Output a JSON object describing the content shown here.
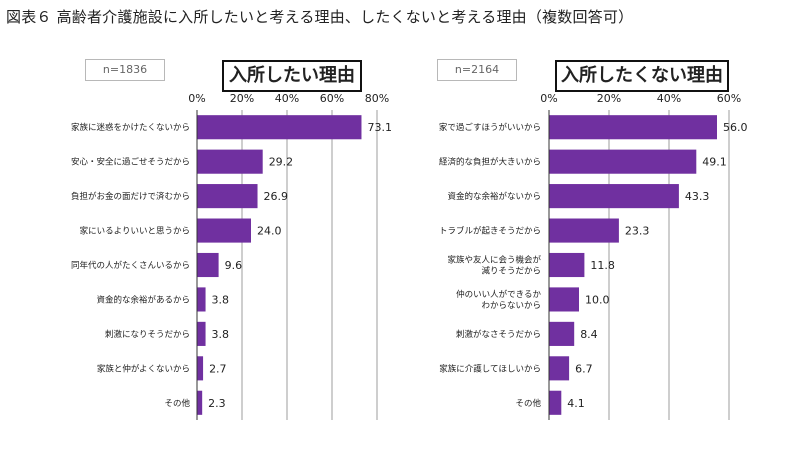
{
  "figure_title": "図表６ 高齢者介護施設に入所したいと考える理由、したくないと考える理由（複数回答可）",
  "colors": {
    "bar": "#7030a0",
    "grid": "#9e9e9e",
    "axis": "#333333"
  },
  "chart_data": [
    {
      "type": "bar",
      "orientation": "horizontal",
      "title": "入所したい理由",
      "n_label": "n=1836",
      "xlim": [
        0,
        80
      ],
      "ticks": [
        "0%",
        "20%",
        "40%",
        "60%",
        "80%"
      ],
      "tick_values": [
        0,
        20,
        40,
        60,
        80
      ],
      "categories": [
        [
          "家族に迷惑をかけたくないから"
        ],
        [
          "安心・安全に過ごせそうだから"
        ],
        [
          "負担がお金の面だけで済むから"
        ],
        [
          "家にいるよりいいと思うから"
        ],
        [
          "同年代の人がたくさんいるから"
        ],
        [
          "資金的な余裕があるから"
        ],
        [
          "刺激になりそうだから"
        ],
        [
          "家族と仲がよくないから"
        ],
        [
          "その他"
        ]
      ],
      "values": [
        73.1,
        29.2,
        26.9,
        24.0,
        9.6,
        3.8,
        3.8,
        2.7,
        2.3
      ],
      "value_labels": [
        "73.1",
        "29.2",
        "26.9",
        "24.0",
        "9.6",
        "3.8",
        "3.8",
        "2.7",
        "2.3"
      ]
    },
    {
      "type": "bar",
      "orientation": "horizontal",
      "title": "入所したくない理由",
      "n_label": "n=2164",
      "xlim": [
        0,
        60
      ],
      "ticks": [
        "0%",
        "20%",
        "40%",
        "60%"
      ],
      "tick_values": [
        0,
        20,
        40,
        60
      ],
      "categories": [
        [
          "家で過ごすほうがいいから"
        ],
        [
          "経済的な負担が大きいから"
        ],
        [
          "資金的な余裕がないから"
        ],
        [
          "トラブルが起きそうだから"
        ],
        [
          "家族や友人に会う機会が",
          "減りそうだから"
        ],
        [
          "仲のいい人ができるか",
          "わからないから"
        ],
        [
          "刺激がなさそうだから"
        ],
        [
          "家族に介護してほしいから"
        ],
        [
          "その他"
        ]
      ],
      "values": [
        56.0,
        49.1,
        43.3,
        23.3,
        11.8,
        10.0,
        8.4,
        6.7,
        4.1
      ],
      "value_labels": [
        "56.0",
        "49.1",
        "43.3",
        "23.3",
        "11.8",
        "10.0",
        "8.4",
        "6.7",
        "4.1"
      ]
    }
  ]
}
